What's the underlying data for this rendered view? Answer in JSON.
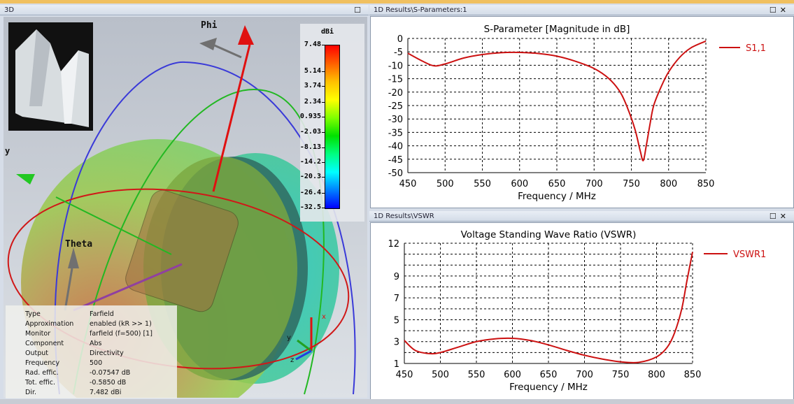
{
  "top_strip_color": "#f0c060",
  "panel_3d": {
    "title": "3D",
    "axis_labels": {
      "phi": "Phi",
      "theta": "Theta",
      "y": "y"
    },
    "mini_axes": {
      "x": "x",
      "y": "y",
      "z": "z"
    },
    "colorbar": {
      "unit": "dBi",
      "ticks": [
        "7.48",
        "5.14",
        "3.74",
        "2.34",
        "0.935",
        "-2.03",
        "-8.13",
        "-14.2",
        "-20.3",
        "-26.4",
        "-32.5"
      ],
      "colors": [
        "#ff0000",
        "#ff6000",
        "#ffc000",
        "#ffff00",
        "#80ff00",
        "#00e000",
        "#00ff80",
        "#00ffff",
        "#0080ff",
        "#0000ff"
      ]
    },
    "info": [
      {
        "key": "Type",
        "value": "Farfield"
      },
      {
        "key": "Approximation",
        "value": "enabled (kR >> 1)"
      },
      {
        "key": "Monitor",
        "value": "farfield (f=500) [1]"
      },
      {
        "key": "Component",
        "value": "Abs"
      },
      {
        "key": "Output",
        "value": "Directivity"
      },
      {
        "key": "Frequency",
        "value": "500"
      },
      {
        "key": "Rad. effic.",
        "value": "-0.07547 dB"
      },
      {
        "key": "Tot. effic.",
        "value": "-0.5850 dB"
      },
      {
        "key": "Dir.",
        "value": "7.482 dBi"
      }
    ]
  },
  "panel_sparam": {
    "title": "1D Results\\S-Parameters:1"
  },
  "panel_vswr": {
    "title": "1D Results\\VSWR"
  },
  "chart_data": [
    {
      "type": "line",
      "title": "S-Parameter [Magnitude in dB]",
      "xlabel": "Frequency / MHz",
      "ylabel": "",
      "xlim": [
        450,
        850
      ],
      "ylim": [
        -50,
        0
      ],
      "xticks": [
        450,
        500,
        550,
        600,
        650,
        700,
        750,
        800,
        850
      ],
      "yticks": [
        0,
        -5,
        -10,
        -15,
        -20,
        -25,
        -30,
        -35,
        -40,
        -45,
        -50
      ],
      "grid": true,
      "legend": "right",
      "series": [
        {
          "name": "S1,1",
          "color": "#cc1111",
          "x": [
            450,
            470,
            485,
            500,
            525,
            550,
            575,
            600,
            625,
            650,
            675,
            700,
            720,
            735,
            745,
            755,
            762,
            766,
            770,
            775,
            780,
            790,
            800,
            815,
            830,
            850
          ],
          "y": [
            -5.5,
            -8.5,
            -10.2,
            -9.5,
            -7.3,
            -6,
            -5.3,
            -5.2,
            -5.6,
            -6.6,
            -8.5,
            -11.2,
            -15,
            -20,
            -26,
            -34,
            -42,
            -45.5,
            -40,
            -32,
            -25,
            -18,
            -12.5,
            -7,
            -3.5,
            -1
          ]
        }
      ]
    },
    {
      "type": "line",
      "title": "Voltage Standing Wave Ratio (VSWR)",
      "xlabel": "Frequency / MHz",
      "ylabel": "",
      "xlim": [
        450,
        850
      ],
      "ylim": [
        1,
        12
      ],
      "xticks": [
        450,
        500,
        550,
        600,
        650,
        700,
        750,
        800,
        850
      ],
      "yticks": [
        1,
        3,
        5,
        7,
        9,
        12
      ],
      "grid": true,
      "legend": "right",
      "series": [
        {
          "name": "VSWR1",
          "color": "#cc1111",
          "x": [
            450,
            465,
            485,
            500,
            525,
            550,
            575,
            600,
            625,
            650,
            675,
            700,
            725,
            750,
            775,
            800,
            815,
            825,
            835,
            842,
            850
          ],
          "y": [
            3.1,
            2.2,
            1.9,
            2.0,
            2.5,
            3.0,
            3.25,
            3.3,
            3.1,
            2.7,
            2.2,
            1.75,
            1.4,
            1.15,
            1.1,
            1.6,
            2.5,
            3.8,
            6,
            8.5,
            11.2
          ]
        }
      ]
    }
  ]
}
